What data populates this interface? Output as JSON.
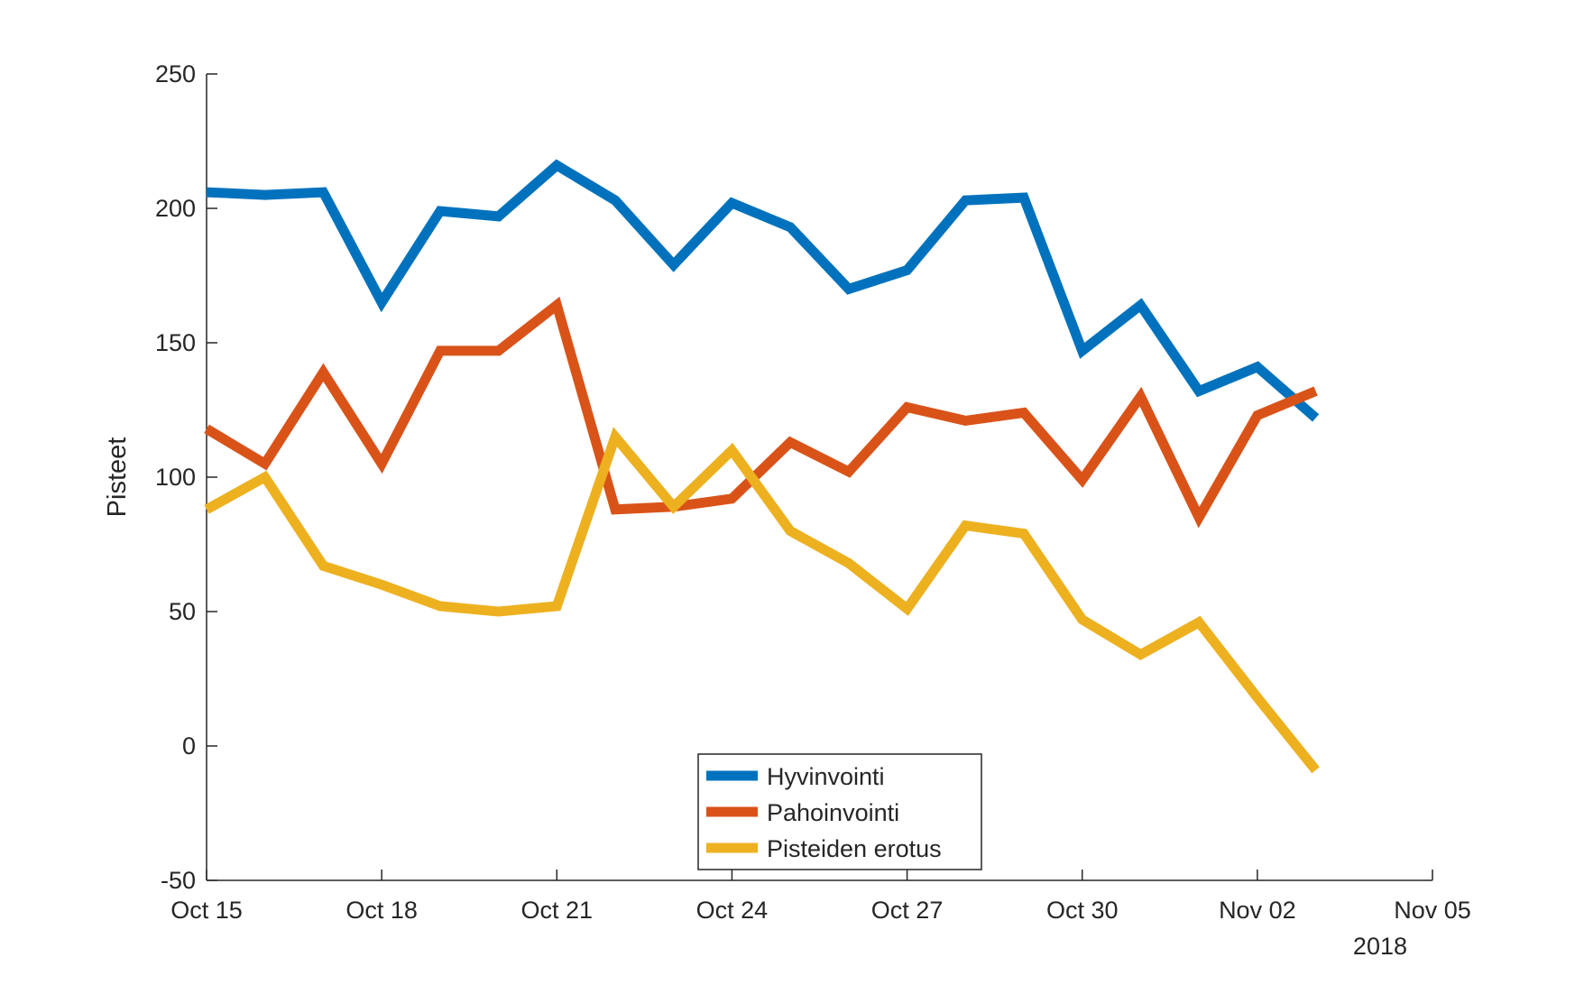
{
  "chart_data": {
    "type": "line",
    "title": "",
    "xlabel": "",
    "ylabel": "Pisteet",
    "year_label": "2018",
    "x": [
      "2018-10-15",
      "2018-10-16",
      "2018-10-17",
      "2018-10-18",
      "2018-10-19",
      "2018-10-20",
      "2018-10-21",
      "2018-10-22",
      "2018-10-23",
      "2018-10-24",
      "2018-10-25",
      "2018-10-26",
      "2018-10-27",
      "2018-10-28",
      "2018-10-29",
      "2018-10-30",
      "2018-10-31",
      "2018-11-01",
      "2018-11-02",
      "2018-11-03"
    ],
    "xlim": [
      "2018-10-15",
      "2018-11-05"
    ],
    "ylim": [
      -50,
      250
    ],
    "x_ticks": [
      "Oct 15",
      "Oct 18",
      "Oct 21",
      "Oct 24",
      "Oct 27",
      "Oct 30",
      "Nov 02",
      "Nov 05"
    ],
    "x_tick_dates": [
      "2018-10-15",
      "2018-10-18",
      "2018-10-21",
      "2018-10-24",
      "2018-10-27",
      "2018-10-30",
      "2018-11-02",
      "2018-11-05"
    ],
    "y_ticks": [
      "-50",
      "0",
      "50",
      "100",
      "150",
      "200",
      "250"
    ],
    "y_tick_values": [
      -50,
      0,
      50,
      100,
      150,
      200,
      250
    ],
    "grid": false,
    "legend_position": "bottom-center",
    "series": [
      {
        "name": "Hyvinvointi",
        "color": "#0072BD",
        "values": [
          206,
          205,
          206,
          165,
          199,
          197,
          216,
          203,
          179,
          202,
          193,
          170,
          177,
          203,
          204,
          147,
          164,
          132,
          141,
          122
        ]
      },
      {
        "name": "Pahoinvointi",
        "color": "#D95319",
        "values": [
          118,
          105,
          139,
          105,
          147,
          147,
          164,
          88,
          89,
          92,
          113,
          102,
          126,
          121,
          124,
          99,
          130,
          85,
          123,
          132
        ]
      },
      {
        "name": "Pisteiden erotus",
        "color": "#EDB120",
        "values": [
          88,
          100,
          67,
          60,
          52,
          50,
          52,
          115,
          89,
          110,
          80,
          68,
          51,
          82,
          79,
          47,
          34,
          46,
          18,
          -9
        ]
      }
    ]
  }
}
